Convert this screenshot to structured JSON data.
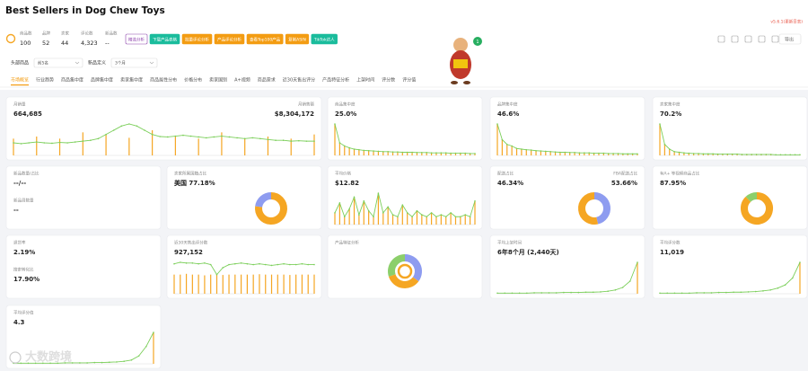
{
  "header": {
    "title": "Best Sellers in Dog Chew Toys",
    "version": "v5.6.1(更新日志)",
    "badge": "1",
    "export": "导出"
  },
  "stats": [
    {
      "label": "商品数",
      "value": "100"
    },
    {
      "label": "品牌",
      "value": "52"
    },
    {
      "label": "卖家",
      "value": "44"
    },
    {
      "label": "评论数",
      "value": "4,323"
    },
    {
      "label": "新品数",
      "value": "--"
    }
  ],
  "buttons": [
    "精选分析",
    "下载产品表格",
    "批量评论分析",
    "产品评论分析",
    "查看Top100产品",
    "复制ASIN",
    "TikTok达人"
  ],
  "filters": [
    {
      "label": "头部商品",
      "value": "前5名"
    },
    {
      "label": "新品定义",
      "value": "3个月"
    }
  ],
  "tabs": [
    "市场概览",
    "行业趋势",
    "商品集中度",
    "品牌集中度",
    "卖家集中度",
    "商品属性分布",
    "价格分布",
    "卖家国别",
    "A+视频",
    "商品需求",
    "近30天售出评分",
    "产品特征分析",
    "上架时间",
    "评分数",
    "评分值"
  ],
  "cards": [
    {
      "items": [
        {
          "label": "月销量",
          "value": "664,685"
        },
        {
          "label": "月销售额",
          "value": "$8,304,172"
        }
      ],
      "chart": {
        "bars": [
          40,
          0,
          0,
          45,
          0,
          0,
          40,
          0,
          0,
          55,
          0,
          0,
          50,
          0,
          0,
          42,
          0,
          0,
          60,
          0,
          0,
          45,
          0,
          0,
          40,
          0,
          0,
          55,
          0,
          0,
          40,
          0,
          0,
          45,
          0,
          0,
          40,
          0,
          0,
          50
        ],
        "line": [
          30,
          28,
          30,
          32,
          30,
          29,
          31,
          30,
          32,
          34,
          36,
          40,
          50,
          60,
          70,
          75,
          70,
          60,
          50,
          45,
          44,
          46,
          48,
          46,
          44,
          42,
          44,
          46,
          44,
          42,
          40,
          42,
          40,
          38,
          36,
          36,
          34,
          35,
          34,
          34
        ]
      }
    },
    {
      "items": [
        {
          "label": "商品集中度",
          "value": "25.0%"
        }
      ],
      "chart": {
        "bars": [
          100,
          40,
          30,
          24,
          20,
          18,
          16,
          15,
          14,
          13,
          12,
          12,
          11,
          11,
          10,
          10,
          10,
          9,
          9,
          9,
          8,
          8,
          8,
          8,
          7,
          7,
          7,
          7,
          6,
          6
        ],
        "line": [
          100,
          40,
          30,
          24,
          20,
          18,
          16,
          15,
          14,
          13,
          12,
          12,
          11,
          11,
          10,
          10,
          10,
          9,
          9,
          9,
          8,
          8,
          8,
          8,
          7,
          7,
          7,
          7,
          6,
          6
        ]
      }
    },
    {
      "items": [
        {
          "label": "品牌集中度",
          "value": "46.6%"
        }
      ],
      "chart": {
        "bars": [
          100,
          50,
          35,
          30,
          22,
          20,
          18,
          17,
          15,
          14,
          13,
          12,
          11,
          10,
          10,
          9,
          9,
          8,
          8,
          8,
          7,
          7,
          7,
          6,
          6,
          6,
          5,
          5,
          5,
          5
        ],
        "line": [
          100,
          50,
          35,
          30,
          22,
          20,
          18,
          17,
          15,
          14,
          13,
          12,
          11,
          10,
          10,
          9,
          9,
          8,
          8,
          8,
          7,
          7,
          7,
          6,
          6,
          6,
          5,
          5,
          5,
          5
        ]
      }
    },
    {
      "items": [
        {
          "label": "卖家集中度",
          "value": "70.2%"
        }
      ],
      "chart": {
        "bars": [
          100,
          35,
          20,
          12,
          10,
          8,
          7,
          6,
          6,
          5,
          5,
          5,
          4,
          4,
          4,
          4,
          4,
          3,
          3,
          3,
          3,
          3,
          3,
          3,
          2,
          2,
          2,
          2,
          2,
          2
        ],
        "line": [
          100,
          35,
          20,
          12,
          10,
          8,
          7,
          6,
          6,
          5,
          5,
          5,
          4,
          4,
          4,
          4,
          4,
          3,
          3,
          3,
          3,
          3,
          3,
          3,
          2,
          2,
          2,
          2,
          2,
          2
        ]
      }
    },
    {
      "items": [
        {
          "label": "新品数量/占比",
          "value": "--/--"
        },
        {
          "label": "新品周数量",
          "value": "--"
        }
      ]
    },
    {
      "items": [
        {
          "label": "卖家所属国籍占比",
          "value": "美国   77.18%"
        }
      ],
      "chart": {
        "slices": [
          {
            "value": 77.18,
            "color": "#f5a623"
          },
          {
            "value": 22.82,
            "color": "#8e9cf0"
          }
        ]
      }
    },
    {
      "items": [
        {
          "label": "平均价格",
          "value": "$12.82"
        }
      ],
      "chart": {
        "bars": [
          30,
          55,
          20,
          40,
          70,
          25,
          60,
          35,
          20,
          80,
          30,
          45,
          25,
          20,
          50,
          30,
          20,
          35,
          25,
          20,
          30,
          20,
          25,
          20,
          30,
          20,
          20,
          25,
          20,
          60
        ],
        "line": [
          30,
          55,
          20,
          40,
          70,
          25,
          60,
          35,
          20,
          80,
          30,
          45,
          25,
          20,
          50,
          30,
          20,
          35,
          25,
          20,
          30,
          20,
          25,
          20,
          30,
          20,
          20,
          25,
          20,
          60
        ]
      }
    },
    {
      "items": [
        {
          "label": "配送占比",
          "value": "46.34%"
        },
        {
          "label": "FBA配送占比",
          "value": "53.66%"
        }
      ],
      "chart": {
        "slices": [
          {
            "value": 46.34,
            "color": "#8e9cf0"
          },
          {
            "value": 53.66,
            "color": "#f5a623"
          }
        ]
      }
    },
    {
      "items": [
        {
          "label": "有A+ 等视频商品占比",
          "value": "87.95%"
        }
      ],
      "chart": {
        "slices": [
          {
            "value": 87.95,
            "color": "#f5a623"
          },
          {
            "value": 12.05,
            "color": "#8ccf6b"
          }
        ]
      }
    },
    {
      "items": [
        {
          "label": "退货率",
          "value": "2.19%"
        },
        {
          "label": "搜索转化比",
          "value": "17.90%"
        }
      ]
    },
    {
      "items": [
        {
          "label": "近30天售出评分数",
          "value": "927,152"
        }
      ],
      "chart": {
        "bars": [
          50,
          50,
          52,
          50,
          50,
          48,
          50,
          50,
          49,
          50,
          50,
          50,
          50,
          50,
          51,
          50,
          50,
          50,
          50,
          49,
          50,
          50,
          50,
          50
        ],
        "line": [
          78,
          82,
          80,
          80,
          78,
          80,
          76,
          50,
          68,
          76,
          78,
          80,
          78,
          76,
          78,
          76,
          74,
          76,
          78,
          76,
          76,
          78,
          76,
          76
        ]
      }
    },
    {
      "items": [
        {
          "label": "产品特征分析",
          "value": ""
        }
      ],
      "chart": {
        "slices": [
          {
            "value": 35,
            "color": "#8e9cf0"
          },
          {
            "value": 35,
            "color": "#f5a623"
          },
          {
            "value": 30,
            "color": "#8ccf6b"
          }
        ]
      }
    },
    {
      "items": [
        {
          "label": "平均上架时间",
          "value": "6年8个月 (2,440天)"
        }
      ],
      "chart": {
        "bars": [
          0,
          0,
          0,
          0,
          0,
          0,
          0,
          0,
          0,
          0,
          0,
          0,
          0,
          0,
          0,
          0,
          0,
          0,
          0,
          100
        ],
        "line": [
          2,
          2,
          2,
          2,
          2,
          3,
          3,
          3,
          3,
          4,
          4,
          4,
          5,
          5,
          6,
          8,
          12,
          20,
          40,
          100
        ]
      }
    },
    {
      "items": [
        {
          "label": "平均评分数",
          "value": "11,019"
        }
      ],
      "chart": {
        "bars": [
          0,
          0,
          0,
          0,
          0,
          0,
          0,
          0,
          0,
          0,
          0,
          0,
          0,
          0,
          0,
          0,
          0,
          0,
          0,
          100
        ],
        "line": [
          2,
          2,
          2,
          2,
          2,
          3,
          3,
          3,
          4,
          4,
          5,
          5,
          6,
          7,
          9,
          12,
          18,
          28,
          50,
          100
        ]
      }
    },
    {
      "items": [
        {
          "label": "平均评分值",
          "value": "4.3"
        }
      ],
      "chart": {
        "bars": [
          0,
          0,
          0,
          0,
          0,
          0,
          0,
          0,
          0,
          0,
          0,
          0,
          0,
          0,
          0,
          0,
          0,
          0,
          0,
          100
        ],
        "line": [
          2,
          2,
          2,
          2,
          2,
          2,
          2,
          3,
          3,
          3,
          3,
          4,
          4,
          5,
          6,
          8,
          12,
          25,
          55,
          100
        ]
      }
    }
  ],
  "watermark": "大数跨境"
}
